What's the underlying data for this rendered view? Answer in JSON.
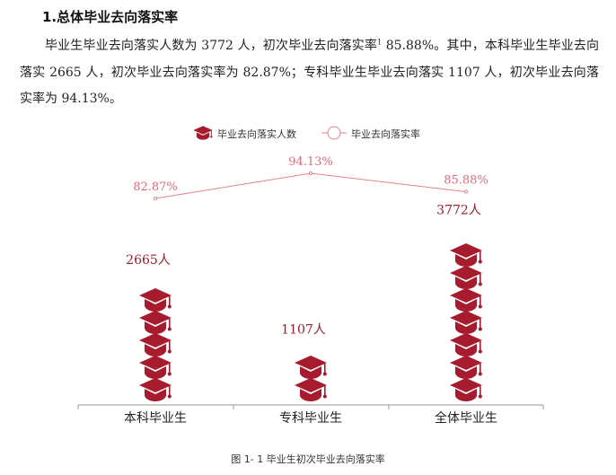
{
  "section": {
    "heading": "1.总体毕业去向落实率"
  },
  "paragraph": {
    "part1": "毕业生毕业去向落实人数为 3772 人，初次毕业去向落实率",
    "footnote_mark": "1",
    "part2": " 85.88%。其中，本科毕业生毕业去向落实 2665 人，初次毕业去向落实率为 82.87%；专科毕业生毕业去向落实 1107 人，初次毕业去向落实率为 94.13%。"
  },
  "colors": {
    "icon": "#a61c2e",
    "line": "#e8818f",
    "value_label": "#9e1b2a",
    "rate_label": "#e36b7c"
  },
  "chart_data": {
    "type": "pictograph-bar-with-line",
    "categories": [
      "本科毕业生",
      "专科毕业生",
      "全体毕业生"
    ],
    "series": [
      {
        "name": "毕业去向落实人数",
        "values": [
          2665,
          1107,
          3772
        ],
        "labels": [
          "2665人",
          "1107人",
          "3772人"
        ],
        "icon": "graduation-cap-icon"
      },
      {
        "name": "毕业去向落实率",
        "values": [
          82.87,
          94.13,
          85.88
        ],
        "labels": [
          "82.87%",
          "94.13%",
          "85.88%"
        ]
      }
    ],
    "caption": "图 1- 1 毕业生初次毕业去向落实率",
    "legend_position": "top-center",
    "grid": false
  }
}
